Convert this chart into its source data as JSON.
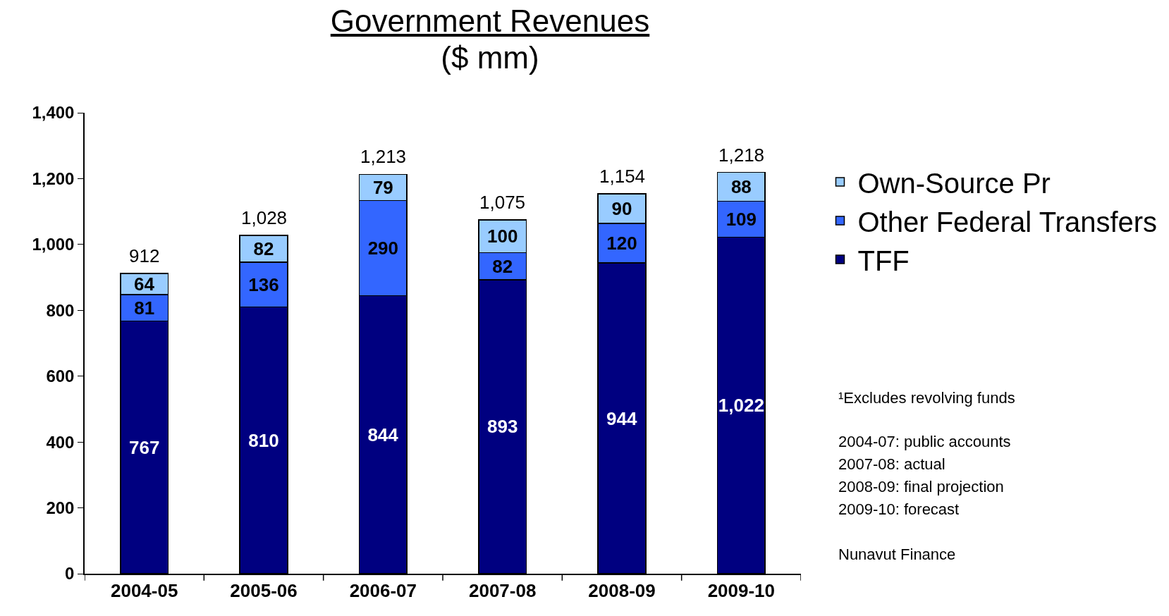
{
  "chart_data": {
    "type": "bar",
    "title": "Government Revenues",
    "subtitle": "($ mm)",
    "categories": [
      "2004-05",
      "2005-06",
      "2006-07",
      "2007-08",
      "2008-09",
      "2009-10"
    ],
    "series": [
      {
        "name": "TFF",
        "color": "#000080",
        "values": [
          767,
          810,
          844,
          893,
          944,
          1022
        ],
        "value_labels": [
          "767",
          "810",
          "844",
          "893",
          "944",
          "1,022"
        ]
      },
      {
        "name": "Other Federal Transfers",
        "color": "#3366ff",
        "values": [
          81,
          136,
          290,
          82,
          120,
          109
        ]
      },
      {
        "name": "Own-Source Pr",
        "color": "#99ccff",
        "values": [
          64,
          82,
          79,
          100,
          90,
          88
        ]
      }
    ],
    "stacked": true,
    "data_labels": true,
    "totals": [
      "912",
      "1,028",
      "1,213",
      "1,075",
      "1,154",
      "1,218"
    ],
    "ylim": [
      0,
      1400
    ],
    "yticks": [
      0,
      200,
      400,
      600,
      800,
      {
        "value": 1000,
        "label": "1,000"
      },
      {
        "value": 1200,
        "label": "1,200"
      },
      {
        "value": 1400,
        "label": "1,400"
      }
    ],
    "grid": false,
    "legend": "right",
    "annotations": [
      "¹Excludes revolving funds",
      "2004-07: public accounts",
      "2007-08: actual",
      "2008-09: final projection",
      "2009-10: forecast",
      "Nunavut Finance"
    ]
  }
}
